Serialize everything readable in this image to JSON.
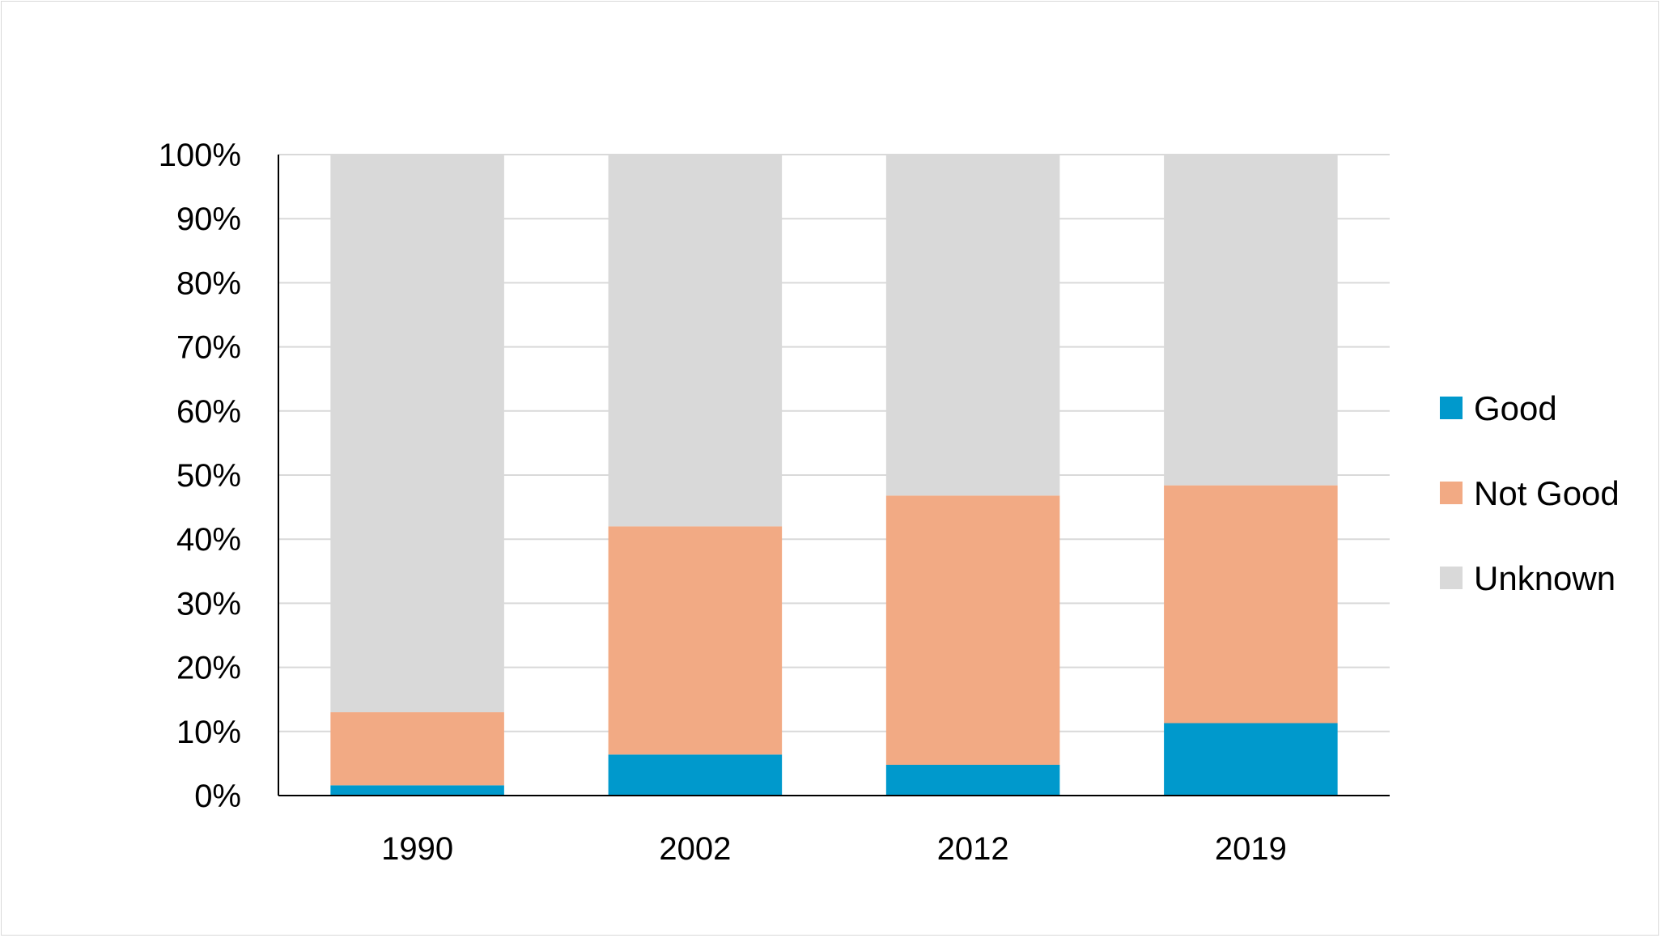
{
  "chart_data": {
    "type": "bar",
    "stacked": true,
    "percent": true,
    "categories": [
      "1990",
      "2002",
      "2012",
      "2019"
    ],
    "series": [
      {
        "name": "Good",
        "color": "#0099CC",
        "values": [
          1.6,
          6.4,
          4.8,
          11.3
        ]
      },
      {
        "name": "Not Good",
        "color": "#F2AA84",
        "values": [
          11.4,
          35.6,
          42.0,
          37.1
        ]
      },
      {
        "name": "Unknown",
        "color": "#D9D9D9",
        "values": [
          87.0,
          58.0,
          53.2,
          51.6
        ]
      }
    ],
    "y_ticks": [
      "0%",
      "10%",
      "20%",
      "30%",
      "40%",
      "50%",
      "60%",
      "70%",
      "80%",
      "90%",
      "100%"
    ],
    "ylim": [
      0,
      100
    ],
    "grid": true,
    "legend_position": "right"
  }
}
